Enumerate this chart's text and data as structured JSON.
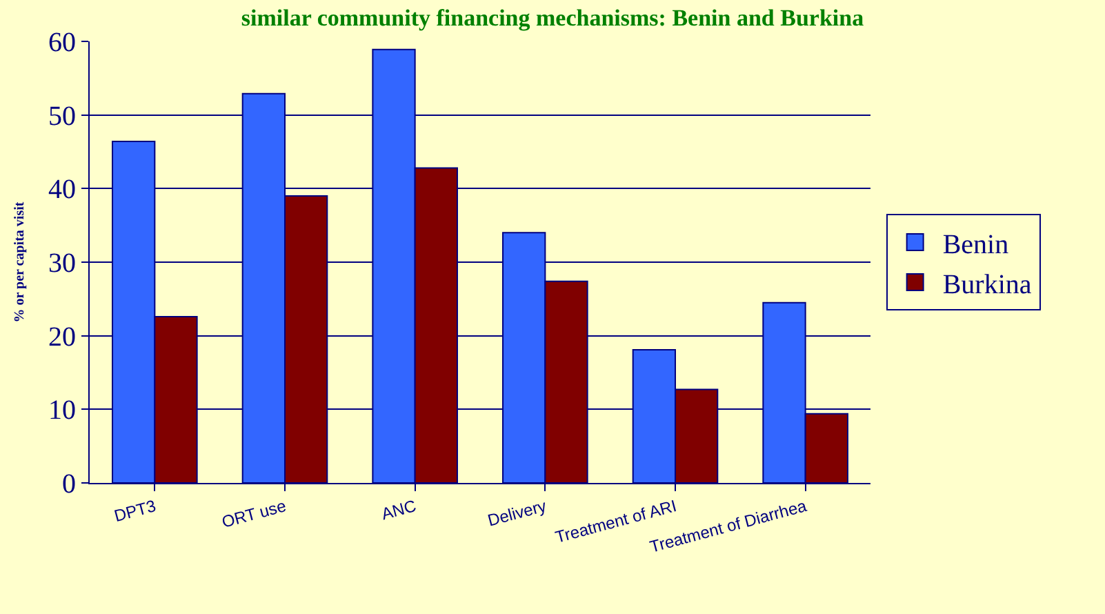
{
  "chart_data": {
    "type": "bar",
    "title": "similar community financing mechanisms: Benin and Burkina",
    "ylabel": "% or per capita visit",
    "categories": [
      "DPT3",
      "ORT use",
      "ANC",
      "Delivery",
      "Treatment of ARI",
      "Treatment of Diarrhea"
    ],
    "series": [
      {
        "name": "Benin",
        "color": "#3366ff",
        "values": [
          46.4,
          52.9,
          58.9,
          34,
          18.1,
          24.5
        ]
      },
      {
        "name": "Burkina",
        "color": "#800000",
        "values": [
          22.6,
          39,
          42.8,
          27.4,
          12.7,
          9.4
        ]
      }
    ],
    "ylim": [
      0,
      60
    ],
    "yticks": [
      0,
      10,
      20,
      30,
      40,
      50,
      60
    ],
    "grid": "y",
    "legend": "right"
  }
}
